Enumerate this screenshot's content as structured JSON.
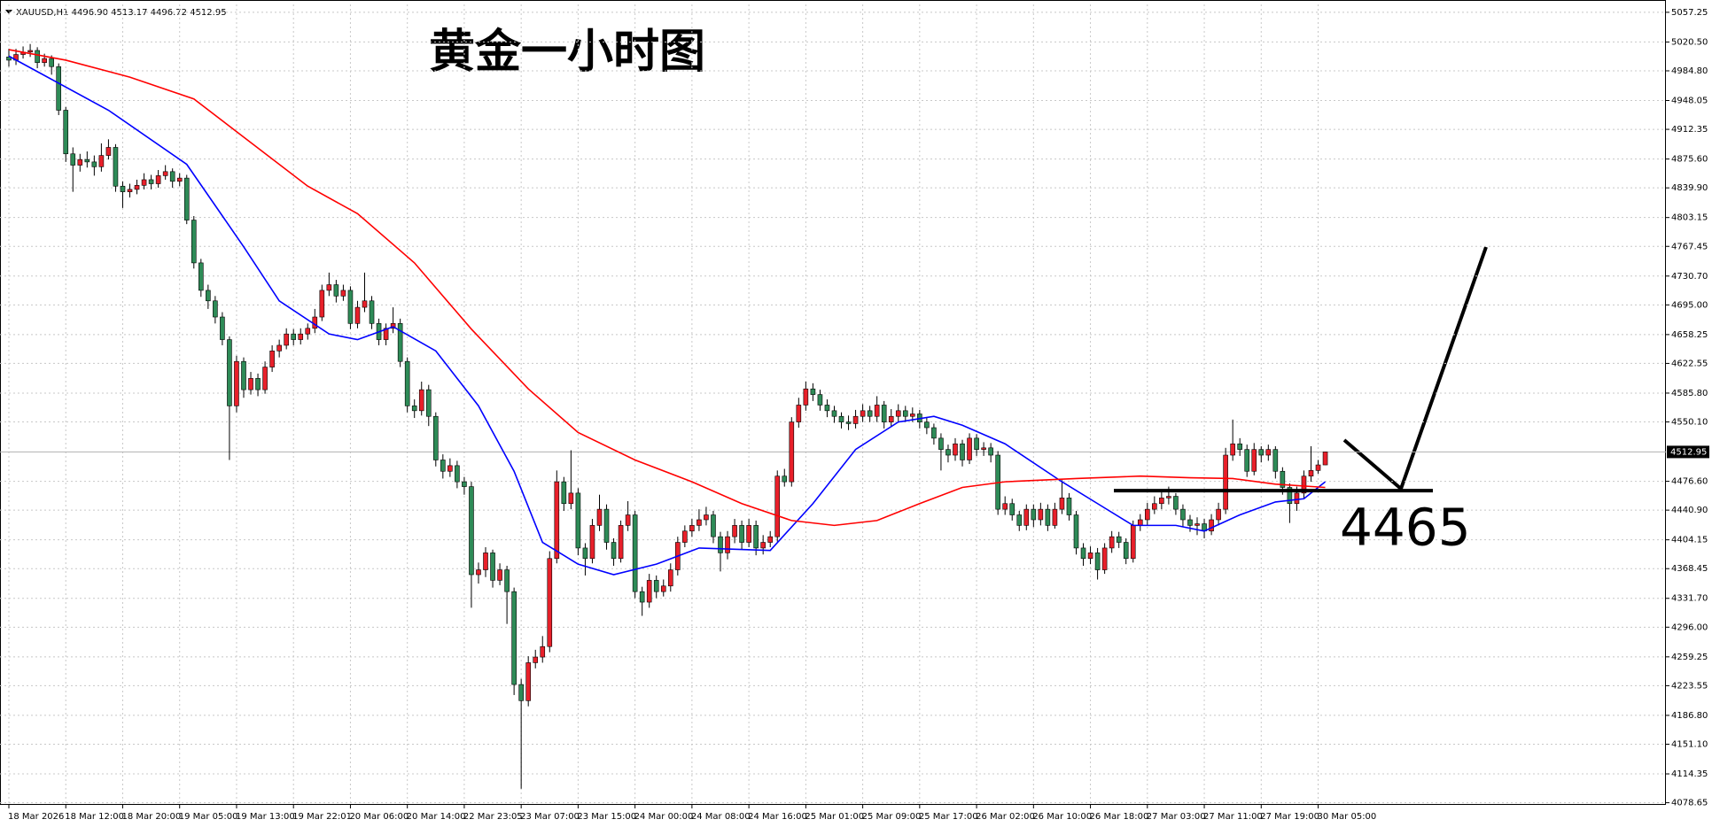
{
  "chart_data": {
    "type": "candlestick",
    "header": "XAUUSD,H1  4496.90 4513.17 4496.72 4512.95",
    "title": "黄金一小时图",
    "categories": [
      "18 Mar 2026",
      null,
      null,
      null,
      null,
      null,
      null,
      null,
      "18 Mar 12:00",
      null,
      null,
      null,
      null,
      null,
      null,
      null,
      "18 Mar 20:00",
      null,
      null,
      null,
      null,
      null,
      null,
      null,
      "19 Mar 05:00",
      null,
      null,
      null,
      null,
      null,
      null,
      null,
      "19 Mar 13:00",
      null,
      null,
      null,
      null,
      null,
      null,
      null,
      "19 Mar 22:01",
      null,
      null,
      null,
      null,
      null,
      null,
      null,
      "20 Mar 06:00",
      null,
      null,
      null,
      null,
      null,
      null,
      null,
      "20 Mar 14:00",
      null,
      null,
      null,
      null,
      null,
      null,
      null,
      "22 Mar 23:05",
      null,
      null,
      null,
      null,
      null,
      null,
      null,
      "23 Mar 07:00",
      null,
      null,
      null,
      null,
      null,
      null,
      null,
      "23 Mar 15:00",
      null,
      null,
      null,
      null,
      null,
      null,
      null,
      "24 Mar 00:00",
      null,
      null,
      null,
      null,
      null,
      null,
      null,
      "24 Mar 08:00",
      null,
      null,
      null,
      null,
      null,
      null,
      null,
      "24 Mar 16:00",
      null,
      null,
      null,
      null,
      null,
      null,
      null,
      "25 Mar 01:00",
      null,
      null,
      null,
      null,
      null,
      null,
      null,
      "25 Mar 09:00",
      null,
      null,
      null,
      null,
      null,
      null,
      null,
      "25 Mar 17:00",
      null,
      null,
      null,
      null,
      null,
      null,
      null,
      "26 Mar 02:00",
      null,
      null,
      null,
      null,
      null,
      null,
      null,
      "26 Mar 10:00",
      null,
      null,
      null,
      null,
      null,
      null,
      null,
      "26 Mar 18:00",
      null,
      null,
      null,
      null,
      null,
      null,
      null,
      "27 Mar 03:00",
      null,
      null,
      null,
      null,
      null,
      null,
      null,
      "27 Mar 11:00",
      null,
      null,
      null,
      null,
      null,
      null,
      null,
      "27 Mar 19:00",
      null,
      null,
      null,
      null,
      null,
      null,
      null,
      "30 Mar 05:00",
      null
    ],
    "open": [
      5002,
      4998,
      5005,
      5008,
      5010,
      4995,
      5000,
      4990,
      4936,
      4882,
      4868,
      4875,
      4872,
      4866,
      4880,
      4890,
      4842,
      4835,
      4838,
      4843,
      4850,
      4845,
      4855,
      4860,
      4848,
      4852,
      4800,
      4747,
      4713,
      4700,
      4680,
      4652,
      4570,
      4625,
      4590,
      4604,
      4590,
      4618,
      4638,
      4645,
      4659,
      4652,
      4659,
      4666,
      4680,
      4713,
      4720,
      4706,
      4713,
      4672,
      4692,
      4700,
      4672,
      4652,
      4666,
      4672,
      4625,
      4570,
      4564,
      4590,
      4557,
      4503,
      4489,
      4496,
      4476,
      4470,
      4361,
      4367,
      4388,
      4354,
      4367,
      4340,
      4225,
      4205,
      4252,
      4259,
      4272,
      4381,
      4476,
      4449,
      4462,
      4394,
      4381,
      4422,
      4442,
      4401,
      4381,
      4422,
      4435,
      4340,
      4327,
      4354,
      4340,
      4347,
      4367,
      4401,
      4415,
      4422,
      4429,
      4435,
      4408,
      4388,
      4408,
      4422,
      4401,
      4422,
      4394,
      4401,
      4408,
      4483,
      4476,
      4550,
      4571,
      4591,
      4584,
      4571,
      4564,
      4557,
      4550,
      4548,
      4557,
      4564,
      4557,
      4571,
      4550,
      4557,
      4564,
      4557,
      4560,
      4550,
      4543,
      4530,
      4516,
      4509,
      4523,
      4503,
      4530,
      4516,
      4518,
      4509,
      4442,
      4449,
      4435,
      4422,
      4442,
      4429,
      4442,
      4422,
      4442,
      4456,
      4435,
      4394,
      4381,
      4388,
      4367,
      4394,
      4408,
      4401,
      4381,
      4422,
      4429,
      4442,
      4449,
      4456,
      4458,
      4442,
      4429,
      4422,
      4424,
      4415,
      4429,
      4442,
      4509,
      4523,
      4516,
      4489,
      4516,
      4509,
      4516,
      4489,
      4469,
      4449,
      4462,
      4483,
      4490,
      4496.9
    ],
    "high": [
      5012,
      5012,
      5015,
      5018,
      5014,
      5006,
      5004,
      4994,
      4940,
      4890,
      4882,
      4885,
      4880,
      4895,
      4900,
      4894,
      4848,
      4845,
      4850,
      4858,
      4856,
      4862,
      4868,
      4864,
      4858,
      4856,
      4805,
      4752,
      4720,
      4706,
      4686,
      4656,
      4632,
      4630,
      4612,
      4610,
      4625,
      4645,
      4652,
      4666,
      4665,
      4666,
      4672,
      4690,
      4720,
      4735,
      4726,
      4720,
      4718,
      4700,
      4735,
      4706,
      4678,
      4672,
      4692,
      4678,
      4630,
      4578,
      4600,
      4596,
      4562,
      4510,
      4505,
      4502,
      4482,
      4476,
      4376,
      4395,
      4392,
      4375,
      4372,
      4345,
      4232,
      4260,
      4268,
      4285,
      4390,
      4490,
      4482,
      4515,
      4468,
      4400,
      4430,
      4460,
      4448,
      4406,
      4428,
      4452,
      4440,
      4346,
      4362,
      4360,
      4355,
      4375,
      4408,
      4422,
      4430,
      4442,
      4445,
      4440,
      4414,
      4415,
      4430,
      4428,
      4430,
      4428,
      4410,
      4415,
      4490,
      4492,
      4556,
      4580,
      4600,
      4598,
      4590,
      4578,
      4570,
      4562,
      4558,
      4565,
      4572,
      4570,
      4582,
      4576,
      4566,
      4572,
      4570,
      4568,
      4565,
      4556,
      4548,
      4536,
      4522,
      4530,
      4528,
      4536,
      4535,
      4525,
      4524,
      4514,
      4458,
      4455,
      4440,
      4448,
      4448,
      4450,
      4448,
      4450,
      4478,
      4462,
      4440,
      4400,
      4396,
      4394,
      4400,
      4415,
      4414,
      4406,
      4428,
      4436,
      4450,
      4458,
      4465,
      4470,
      4462,
      4448,
      4435,
      4432,
      4430,
      4436,
      4450,
      4518,
      4553,
      4530,
      4522,
      4524,
      4520,
      4522,
      4520,
      4494,
      4474,
      4470,
      4490,
      4520,
      4503,
      4513.17
    ],
    "low": [
      4990,
      4992,
      5000,
      5002,
      4988,
      4990,
      4980,
      4930,
      4872,
      4835,
      4860,
      4865,
      4855,
      4860,
      4875,
      4835,
      4815,
      4828,
      4832,
      4838,
      4838,
      4840,
      4850,
      4840,
      4842,
      4795,
      4740,
      4705,
      4690,
      4672,
      4645,
      4503,
      4562,
      4580,
      4584,
      4582,
      4585,
      4612,
      4630,
      4640,
      4645,
      4646,
      4652,
      4660,
      4675,
      4706,
      4698,
      4700,
      4665,
      4666,
      4686,
      4665,
      4645,
      4645,
      4660,
      4618,
      4562,
      4555,
      4558,
      4545,
      4495,
      4480,
      4482,
      4468,
      4460,
      4320,
      4350,
      4358,
      4345,
      4348,
      4300,
      4212,
      4096,
      4198,
      4245,
      4252,
      4265,
      4375,
      4440,
      4442,
      4385,
      4360,
      4375,
      4415,
      4392,
      4372,
      4376,
      4415,
      4332,
      4310,
      4320,
      4332,
      4334,
      4340,
      4360,
      4395,
      4408,
      4415,
      4422,
      4400,
      4365,
      4380,
      4400,
      4392,
      4395,
      4385,
      4386,
      4395,
      4402,
      4470,
      4470,
      4543,
      4564,
      4576,
      4564,
      4556,
      4549,
      4542,
      4540,
      4542,
      4550,
      4550,
      4550,
      4542,
      4544,
      4550,
      4550,
      4550,
      4542,
      4535,
      4522,
      4490,
      4500,
      4502,
      4495,
      4498,
      4508,
      4508,
      4500,
      4435,
      4435,
      4428,
      4415,
      4416,
      4420,
      4422,
      4415,
      4418,
      4436,
      4428,
      4386,
      4372,
      4374,
      4355,
      4362,
      4388,
      4394,
      4374,
      4376,
      4415,
      4422,
      4436,
      4442,
      4448,
      4435,
      4420,
      4414,
      4410,
      4406,
      4410,
      4422,
      4436,
      4502,
      4508,
      4482,
      4484,
      4500,
      4502,
      4480,
      4460,
      4425,
      4440,
      4455,
      4476,
      4486,
      4496.72
    ],
    "close": [
      4998,
      5005,
      5008,
      5010,
      4995,
      5000,
      4990,
      4936,
      4882,
      4868,
      4875,
      4872,
      4866,
      4880,
      4890,
      4842,
      4835,
      4838,
      4843,
      4850,
      4845,
      4855,
      4860,
      4848,
      4852,
      4800,
      4747,
      4713,
      4700,
      4680,
      4652,
      4570,
      4625,
      4590,
      4604,
      4590,
      4618,
      4638,
      4645,
      4659,
      4652,
      4659,
      4666,
      4680,
      4713,
      4720,
      4706,
      4713,
      4672,
      4692,
      4700,
      4672,
      4652,
      4666,
      4672,
      4625,
      4570,
      4564,
      4590,
      4557,
      4503,
      4489,
      4496,
      4476,
      4470,
      4361,
      4367,
      4388,
      4354,
      4367,
      4340,
      4225,
      4205,
      4252,
      4259,
      4272,
      4381,
      4476,
      4449,
      4462,
      4394,
      4381,
      4422,
      4442,
      4401,
      4381,
      4422,
      4435,
      4340,
      4327,
      4354,
      4340,
      4347,
      4367,
      4401,
      4415,
      4422,
      4429,
      4435,
      4408,
      4388,
      4408,
      4422,
      4401,
      4422,
      4394,
      4401,
      4408,
      4483,
      4476,
      4550,
      4571,
      4591,
      4584,
      4571,
      4564,
      4557,
      4550,
      4548,
      4557,
      4564,
      4557,
      4571,
      4550,
      4557,
      4564,
      4557,
      4560,
      4550,
      4543,
      4530,
      4516,
      4509,
      4523,
      4503,
      4530,
      4516,
      4518,
      4509,
      4442,
      4449,
      4435,
      4422,
      4442,
      4429,
      4442,
      4422,
      4442,
      4456,
      4435,
      4394,
      4381,
      4388,
      4367,
      4394,
      4408,
      4401,
      4381,
      4422,
      4429,
      4442,
      4449,
      4456,
      4458,
      4442,
      4429,
      4422,
      4424,
      4415,
      4429,
      4442,
      4509,
      4523,
      4516,
      4489,
      4516,
      4509,
      4516,
      4489,
      4469,
      4449,
      4462,
      4483,
      4490,
      4496.9,
      4512.95
    ],
    "up_color": "#e8202a",
    "down_color": "#2e8b57",
    "moving_averages": [
      {
        "color": "#0000ff",
        "x": [
          0,
          14,
          25,
          33,
          38,
          45,
          49,
          54,
          60,
          66,
          71,
          75,
          80,
          85,
          91,
          97,
          107,
          113,
          119,
          125,
          130,
          134,
          140,
          148,
          153,
          158,
          164,
          168,
          173,
          178,
          182,
          185
        ],
        "values": [
          5003,
          4936,
          4869,
          4767,
          4700,
          4659,
          4652,
          4668,
          4638,
          4570,
          4489,
          4401,
          4374,
          4361,
          4374,
          4394,
          4391,
          4449,
          4516,
          4550,
          4557,
          4546,
          4523,
          4476,
          4449,
          4422,
          4422,
          4415,
          4435,
          4451,
          4455,
          4476
        ]
      },
      {
        "color": "#ff0000",
        "x": [
          0,
          8,
          17,
          26,
          34,
          42,
          49,
          57,
          65,
          73,
          80,
          88,
          96,
          103,
          110,
          116,
          122,
          128,
          134,
          140,
          150,
          159,
          166,
          172,
          178,
          185
        ],
        "values": [
          5011,
          4998,
          4977,
          4950,
          4896,
          4842,
          4808,
          4747,
          4665,
          4591,
          4537,
          4503,
          4476,
          4449,
          4428,
          4422,
          4428,
          4449,
          4469,
          4476,
          4480,
          4483,
          4481,
          4480,
          4473,
          4469
        ]
      }
    ],
    "ylim": [
      4076,
      5067
    ],
    "yticks": [
      5057.25,
      {
        "value": 5020.5,
        "label": "5020.50"
      },
      {
        "value": 4984.8,
        "label": "4984.80"
      },
      4948.05,
      4912.35,
      {
        "value": 4875.6,
        "label": "4875.60"
      },
      {
        "value": 4839.9,
        "label": "4839.90"
      },
      4803.15,
      4767.45,
      {
        "value": 4730.7,
        "label": "4730.70"
      },
      {
        "value": 4695,
        "label": "4695.00"
      },
      4658.25,
      4622.55,
      {
        "value": 4585.8,
        "label": "4585.80"
      },
      {
        "value": 4550.1,
        "label": "4550.10"
      },
      {
        "value": 4476.6,
        "label": "4476.60"
      },
      {
        "value": 4440.9,
        "label": "4440.90"
      },
      4404.15,
      4368.45,
      {
        "value": 4331.7,
        "label": "4331.70"
      },
      {
        "value": 4296,
        "label": "4296.00"
      },
      4259.25,
      4223.55,
      {
        "value": 4186.8,
        "label": "4186.80"
      },
      {
        "value": 4151.1,
        "label": "4151.10"
      },
      4114.35,
      4078.65
    ],
    "grid": true,
    "current_price": 4512.95,
    "level": 4465
  }
}
